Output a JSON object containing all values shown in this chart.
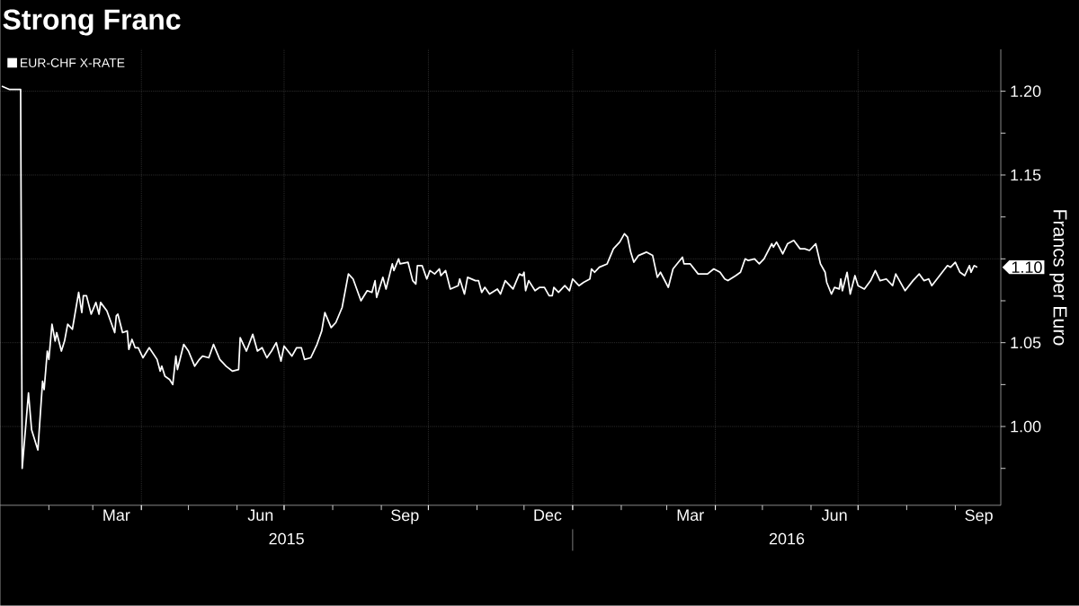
{
  "chart_data": {
    "type": "line",
    "title": "Strong Franc",
    "ylabel": "Francs per Euro",
    "legend": "top left",
    "grid": true,
    "xlim": [
      "2015-01-01",
      "2016-09-30"
    ],
    "ylim": [
      0.953,
      1.225
    ],
    "xticks": [
      {
        "value": "2015-04-01",
        "label": null
      },
      {
        "value": "2015-07-01",
        "label": null
      },
      {
        "value": "2015-10-01",
        "label": null
      },
      {
        "value": "2016-01-01",
        "label": null
      },
      {
        "value": "2016-04-01",
        "label": null
      },
      {
        "value": "2016-07-01",
        "label": null
      },
      {
        "value": "2015-03-16",
        "label": "Mar"
      },
      {
        "value": "2015-06-16",
        "label": "Jun"
      },
      {
        "value": "2015-09-16",
        "label": "Sep"
      },
      {
        "value": "2015-12-16",
        "label": "Dec"
      },
      {
        "value": "2016-03-16",
        "label": "Mar"
      },
      {
        "value": "2016-06-16",
        "label": "Jun"
      },
      {
        "value": "2016-09-16",
        "label": "Sep"
      }
    ],
    "yticks": [
      {
        "value": 0.975,
        "label": null
      },
      {
        "value": 1.0,
        "label": "1.00"
      },
      {
        "value": 1.025,
        "label": null
      },
      {
        "value": 1.05,
        "label": "1.05"
      },
      {
        "value": 1.075,
        "label": null
      },
      {
        "value": 1.1,
        "label": null
      },
      {
        "value": 1.125,
        "label": null
      },
      {
        "value": 1.15,
        "label": "1.15"
      },
      {
        "value": 1.175,
        "label": null
      },
      {
        "value": 1.2,
        "label": "1.20"
      }
    ],
    "annotations": [
      "2015",
      "2016",
      "1.10"
    ],
    "series": [
      {
        "name": "EUR-CHF X-RATE",
        "color": "#ffffff",
        "x": [
          "2015-01-02",
          "2015-01-07",
          "2015-01-14",
          "2015-01-15",
          "2015-01-19",
          "2015-01-21",
          "2015-01-25",
          "2015-01-28",
          "2015-01-29",
          "2015-01-31",
          "2015-02-01",
          "2015-02-03",
          "2015-02-05",
          "2015-02-06",
          "2015-02-09",
          "2015-02-11",
          "2015-02-13",
          "2015-02-16",
          "2015-02-20",
          "2015-02-22",
          "2015-02-23",
          "2015-02-25",
          "2015-02-28",
          "2015-03-03",
          "2015-03-05",
          "2015-03-06",
          "2015-03-10",
          "2015-03-15",
          "2015-03-16",
          "2015-03-17",
          "2015-03-20",
          "2015-03-23",
          "2015-03-24",
          "2015-03-26",
          "2015-03-28",
          "2015-03-30",
          "2015-04-02",
          "2015-04-06",
          "2015-04-11",
          "2015-04-13",
          "2015-04-14",
          "2015-04-16",
          "2015-04-19",
          "2015-04-21",
          "2015-04-23",
          "2015-04-24",
          "2015-04-28",
          "2015-05-01",
          "2015-05-05",
          "2015-05-08",
          "2015-05-10",
          "2015-05-14",
          "2015-05-17",
          "2015-05-21",
          "2015-05-25",
          "2015-05-29",
          "2015-06-02",
          "2015-06-03",
          "2015-06-07",
          "2015-06-11",
          "2015-06-14",
          "2015-06-17",
          "2015-06-20",
          "2015-06-23",
          "2015-06-26",
          "2015-06-29",
          "2015-07-01",
          "2015-07-06",
          "2015-07-09",
          "2015-07-12",
          "2015-07-14",
          "2015-07-18",
          "2015-07-22",
          "2015-07-25",
          "2015-07-27",
          "2015-07-31",
          "2015-08-03",
          "2015-08-07",
          "2015-08-11",
          "2015-08-14",
          "2015-08-19",
          "2015-08-23",
          "2015-08-26",
          "2015-08-28",
          "2015-08-29",
          "2015-09-02",
          "2015-09-04",
          "2015-09-08",
          "2015-09-09",
          "2015-09-12",
          "2015-09-13",
          "2015-09-18",
          "2015-09-21",
          "2015-09-23",
          "2015-09-24",
          "2015-09-27",
          "2015-09-30",
          "2015-10-02",
          "2015-10-05",
          "2015-10-08",
          "2015-10-09",
          "2015-10-12",
          "2015-10-15",
          "2015-10-20",
          "2015-10-21",
          "2015-10-24",
          "2015-10-26",
          "2015-10-31",
          "2015-11-02",
          "2015-11-04",
          "2015-11-06",
          "2015-11-09",
          "2015-11-14",
          "2015-11-16",
          "2015-11-19",
          "2015-11-24",
          "2015-11-28",
          "2015-11-30",
          "2015-12-01",
          "2015-12-02",
          "2015-12-04",
          "2015-12-08",
          "2015-12-11",
          "2015-12-14",
          "2015-12-17",
          "2015-12-19",
          "2015-12-20",
          "2015-12-23",
          "2015-12-27",
          "2015-12-30",
          "2016-01-01",
          "2016-01-05",
          "2016-01-08",
          "2016-01-12",
          "2016-01-13",
          "2016-01-15",
          "2016-01-18",
          "2016-01-23",
          "2016-01-27",
          "2016-01-29",
          "2016-01-31",
          "2016-02-03",
          "2016-02-05",
          "2016-02-07",
          "2016-02-09",
          "2016-02-12",
          "2016-02-17",
          "2016-02-21",
          "2016-02-24",
          "2016-02-26",
          "2016-03-02",
          "2016-03-05",
          "2016-03-11",
          "2016-03-12",
          "2016-03-16",
          "2016-03-21",
          "2016-03-27",
          "2016-03-31",
          "2016-04-04",
          "2016-04-07",
          "2016-04-09",
          "2016-04-14",
          "2016-04-17",
          "2016-04-20",
          "2016-04-22",
          "2016-04-26",
          "2016-04-29",
          "2016-05-02",
          "2016-05-07",
          "2016-05-08",
          "2016-05-10",
          "2016-05-14",
          "2016-05-17",
          "2016-05-21",
          "2016-05-25",
          "2016-05-28",
          "2016-05-31",
          "2016-06-04",
          "2016-06-07",
          "2016-06-10",
          "2016-06-11",
          "2016-06-14",
          "2016-06-16",
          "2016-06-19",
          "2016-06-20",
          "2016-06-21",
          "2016-06-24",
          "2016-06-26",
          "2016-06-29",
          "2016-07-01",
          "2016-07-05",
          "2016-07-09",
          "2016-07-12",
          "2016-07-15",
          "2016-07-19",
          "2016-07-23",
          "2016-07-25",
          "2016-07-31",
          "2016-08-05",
          "2016-08-09",
          "2016-08-12",
          "2016-08-15",
          "2016-08-17",
          "2016-08-22",
          "2016-08-27",
          "2016-08-29",
          "2016-09-01",
          "2016-09-04",
          "2016-09-07",
          "2016-09-10",
          "2016-09-11",
          "2016-09-13",
          "2016-09-15"
        ],
        "values": [
          1.203,
          1.201,
          1.201,
          0.975,
          1.02,
          0.998,
          0.986,
          1.027,
          1.022,
          1.045,
          1.04,
          1.061,
          1.051,
          1.056,
          1.045,
          1.051,
          1.061,
          1.058,
          1.08,
          1.068,
          1.078,
          1.078,
          1.067,
          1.074,
          1.067,
          1.074,
          1.069,
          1.056,
          1.066,
          1.067,
          1.056,
          1.057,
          1.046,
          1.052,
          1.047,
          1.047,
          1.041,
          1.047,
          1.04,
          1.033,
          1.036,
          1.03,
          1.028,
          1.025,
          1.042,
          1.034,
          1.049,
          1.045,
          1.036,
          1.04,
          1.042,
          1.041,
          1.049,
          1.04,
          1.036,
          1.033,
          1.034,
          1.053,
          1.045,
          1.055,
          1.045,
          1.047,
          1.041,
          1.045,
          1.05,
          1.039,
          1.048,
          1.042,
          1.047,
          1.047,
          1.04,
          1.041,
          1.049,
          1.057,
          1.068,
          1.059,
          1.062,
          1.071,
          1.091,
          1.088,
          1.075,
          1.081,
          1.08,
          1.087,
          1.077,
          1.089,
          1.082,
          1.097,
          1.093,
          1.1,
          1.097,
          1.098,
          1.087,
          1.085,
          1.096,
          1.096,
          1.088,
          1.093,
          1.091,
          1.094,
          1.09,
          1.093,
          1.082,
          1.084,
          1.088,
          1.079,
          1.089,
          1.087,
          1.087,
          1.08,
          1.083,
          1.079,
          1.082,
          1.079,
          1.087,
          1.082,
          1.091,
          1.09,
          1.092,
          1.081,
          1.087,
          1.081,
          1.083,
          1.083,
          1.078,
          1.078,
          1.083,
          1.08,
          1.084,
          1.081,
          1.088,
          1.084,
          1.086,
          1.088,
          1.094,
          1.092,
          1.095,
          1.097,
          1.106,
          1.108,
          1.11,
          1.115,
          1.113,
          1.104,
          1.098,
          1.102,
          1.104,
          1.102,
          1.089,
          1.092,
          1.083,
          1.094,
          1.101,
          1.097,
          1.097,
          1.091,
          1.091,
          1.094,
          1.092,
          1.088,
          1.087,
          1.09,
          1.092,
          1.1,
          1.099,
          1.1,
          1.097,
          1.1,
          1.109,
          1.107,
          1.11,
          1.103,
          1.109,
          1.111,
          1.106,
          1.106,
          1.105,
          1.109,
          1.097,
          1.092,
          1.086,
          1.079,
          1.083,
          1.082,
          1.088,
          1.081,
          1.092,
          1.079,
          1.09,
          1.084,
          1.082,
          1.087,
          1.093,
          1.087,
          1.088,
          1.084,
          1.091,
          1.081,
          1.087,
          1.091,
          1.087,
          1.088,
          1.084,
          1.09,
          1.096,
          1.095,
          1.098,
          1.092,
          1.09,
          1.096,
          1.092,
          1.096,
          1.095
        ]
      }
    ]
  }
}
